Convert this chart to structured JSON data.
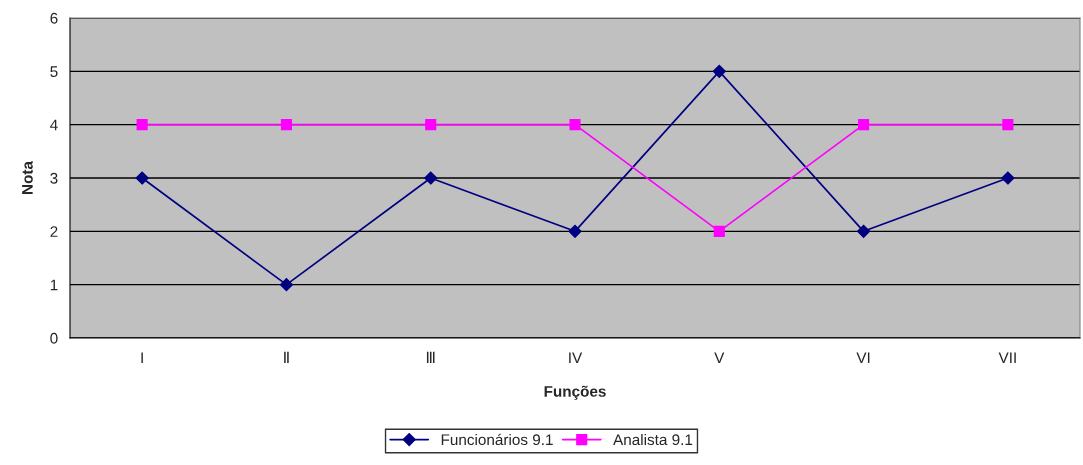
{
  "chart_data": {
    "type": "line",
    "xlabel": "Funções",
    "ylabel": "Nota",
    "categories": [
      "I",
      "Ⅱ",
      "Ⅲ",
      "IV",
      "V",
      "VI",
      "VII"
    ],
    "series": [
      {
        "name": "Funcionários 9.1",
        "color": "#000080",
        "marker": "diamond",
        "values": [
          3,
          1,
          3,
          2,
          5,
          2,
          3
        ]
      },
      {
        "name": "Analista 9.1",
        "color": "#ff00ff",
        "marker": "square",
        "values": [
          4,
          4,
          4,
          4,
          2,
          4,
          4
        ]
      }
    ],
    "ylim": [
      0,
      6
    ],
    "yticks": [
      0,
      1,
      2,
      3,
      4,
      5,
      6
    ],
    "grid": "y",
    "legend": "bottom",
    "line_style": "solid"
  }
}
